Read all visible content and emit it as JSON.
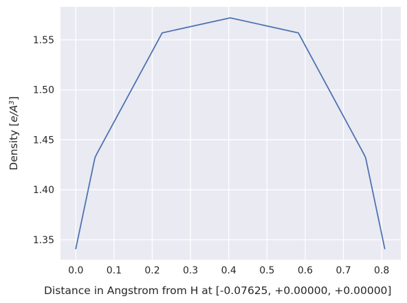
{
  "chart_data": {
    "type": "line",
    "title": "",
    "xlabel": "Distance in Angstrom from H at [-0.07625, +0.00000, +0.00000]",
    "ylabel_prefix": "Density [",
    "ylabel_unit": "e/A",
    "ylabel_exp": "3",
    "ylabel_suffix": "]",
    "grid": true,
    "background_color": "#EAEAF2",
    "grid_color": "#FFFFFF",
    "line_color": "#4C72B0",
    "xlim": [
      -0.04,
      0.85
    ],
    "ylim": [
      1.33,
      1.583
    ],
    "x_ticks": [
      0.0,
      0.1,
      0.2,
      0.3,
      0.4,
      0.5,
      0.6,
      0.7,
      0.8
    ],
    "x_tick_labels": [
      "0.0",
      "0.1",
      "0.2",
      "0.3",
      "0.4",
      "0.5",
      "0.6",
      "0.7",
      "0.8"
    ],
    "y_ticks": [
      1.35,
      1.4,
      1.45,
      1.5,
      1.55
    ],
    "y_tick_labels": [
      "1.35",
      "1.40",
      "1.45",
      "1.50",
      "1.55"
    ],
    "series": [
      {
        "x": [
          0.0,
          0.05,
          0.055,
          0.226,
          0.404,
          0.582,
          0.753,
          0.758,
          0.808
        ],
        "y": [
          1.341,
          1.432,
          1.436,
          1.557,
          1.572,
          1.557,
          1.436,
          1.432,
          1.341
        ]
      }
    ]
  }
}
